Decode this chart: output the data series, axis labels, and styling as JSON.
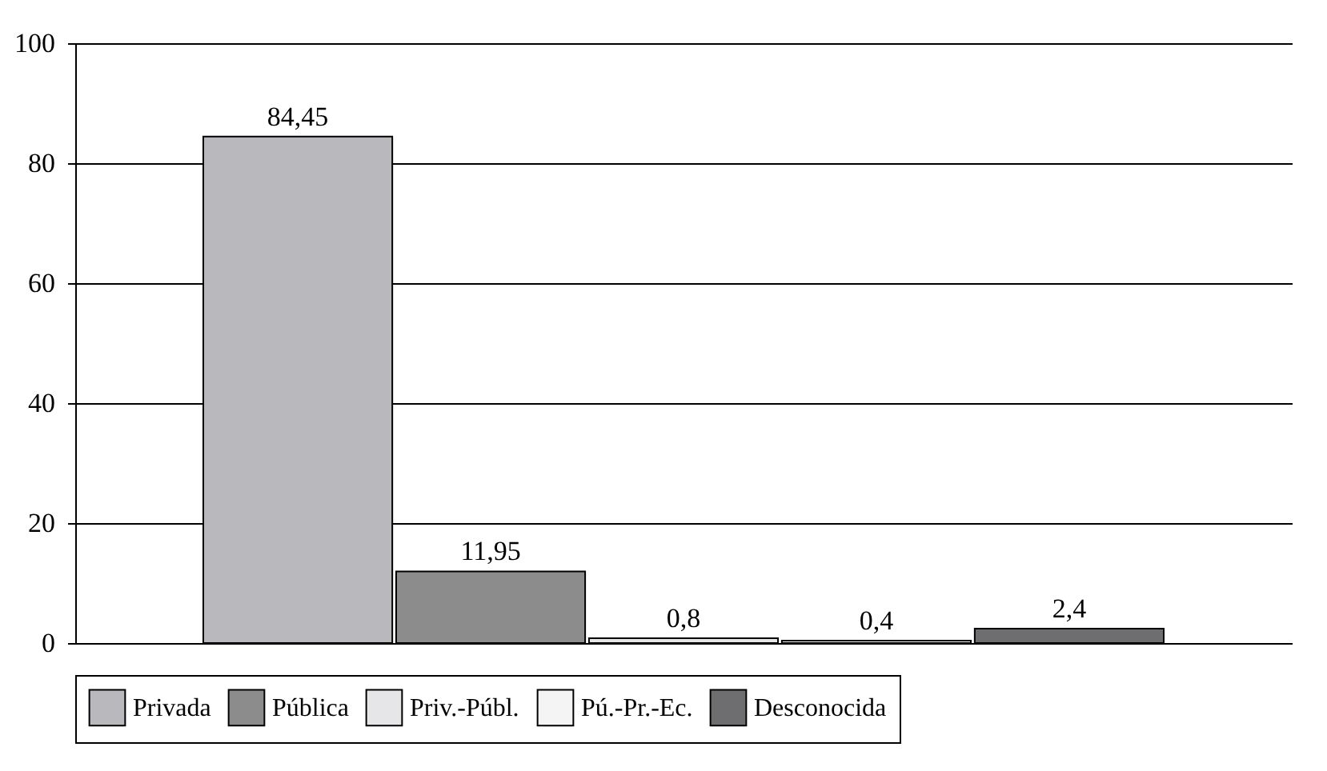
{
  "chart_data": {
    "type": "bar",
    "categories": [
      null
    ],
    "series": [
      {
        "name": "Privada",
        "color": "#b9b9bd",
        "values": [
          84.45
        ],
        "value_labels": [
          "84,45"
        ]
      },
      {
        "name": "Pública",
        "color": "#8c8c8c",
        "values": [
          11.95
        ],
        "value_labels": [
          "11,95"
        ]
      },
      {
        "name": "Priv.-Públ.",
        "color": "#e6e6e8",
        "values": [
          0.8
        ],
        "value_labels": [
          "0,8"
        ]
      },
      {
        "name": "Pú.-Pr.-Ec.",
        "color": "#f4f4f4",
        "values": [
          0.4
        ],
        "value_labels": [
          "0,4"
        ]
      },
      {
        "name": "Desconocida",
        "color": "#6e6e70",
        "values": [
          2.4
        ],
        "value_labels": [
          "2,4"
        ]
      }
    ],
    "ylim": [
      0,
      100
    ],
    "yticks": [
      0,
      20,
      40,
      60,
      80,
      100
    ],
    "grid": "y",
    "legend": "bottom"
  }
}
